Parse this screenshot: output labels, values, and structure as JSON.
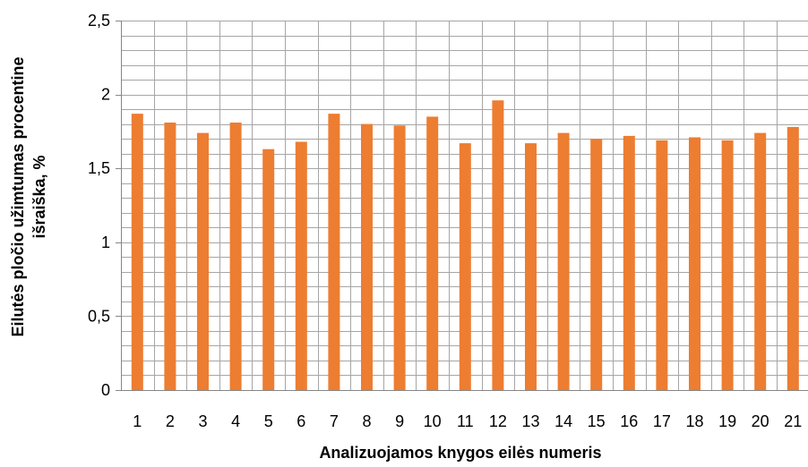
{
  "chart_data": {
    "type": "bar",
    "title": "",
    "xlabel": "Analizuojamos knygos eilės numeris",
    "ylabel_lines": [
      "Eilutės pločio užimtumas procentine",
      "išraiška, %"
    ],
    "categories": [
      "1",
      "2",
      "3",
      "4",
      "5",
      "6",
      "7",
      "8",
      "9",
      "10",
      "11",
      "12",
      "13",
      "14",
      "15",
      "16",
      "17",
      "18",
      "19",
      "20",
      "21"
    ],
    "values": [
      1.87,
      1.81,
      1.74,
      1.81,
      1.63,
      1.68,
      1.87,
      1.8,
      1.79,
      1.85,
      1.67,
      1.96,
      1.67,
      1.74,
      1.7,
      1.72,
      1.69,
      1.71,
      1.69,
      1.74,
      1.78
    ],
    "ylim": [
      0,
      2.5
    ],
    "yticks": [
      0,
      0.5,
      1,
      1.5,
      2,
      2.5
    ],
    "ytick_labels": [
      "0",
      "0,5",
      "1",
      "1,5",
      "2",
      "2,5"
    ],
    "minor_grid_step": 0.1,
    "grid": true,
    "legend": "none",
    "bar_color": "#ED7D31",
    "grid_color": "#A6A6A6"
  }
}
